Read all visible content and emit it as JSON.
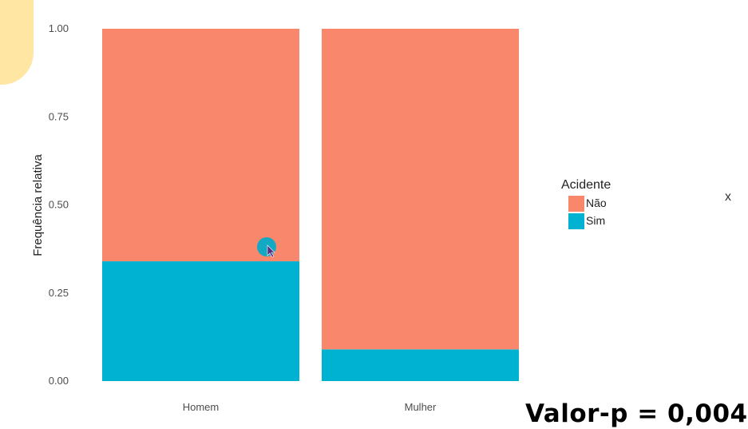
{
  "chart_data": {
    "type": "bar",
    "stacked": true,
    "categories": [
      "Homem",
      "Mulher"
    ],
    "series": [
      {
        "name": "Sim",
        "values": [
          0.34,
          0.09
        ],
        "color": "#00B2D2"
      },
      {
        "name": "Não",
        "values": [
          0.66,
          0.91
        ],
        "color": "#F8876C"
      }
    ],
    "xlabel": "",
    "ylabel": "Frequência relativa",
    "ylim": [
      0,
      1
    ],
    "yticks": [
      "0.00",
      "0.25",
      "0.50",
      "0.75",
      "1.00"
    ],
    "legend": {
      "title": "Acidente",
      "position": "right",
      "entries": [
        {
          "label": "Não",
          "color": "#F8876C"
        },
        {
          "label": "Sim",
          "color": "#00B2D2"
        }
      ]
    },
    "grid": false
  },
  "annotation": {
    "pvalue": "Valor-p = 0,004"
  },
  "edge_glyph": "x"
}
